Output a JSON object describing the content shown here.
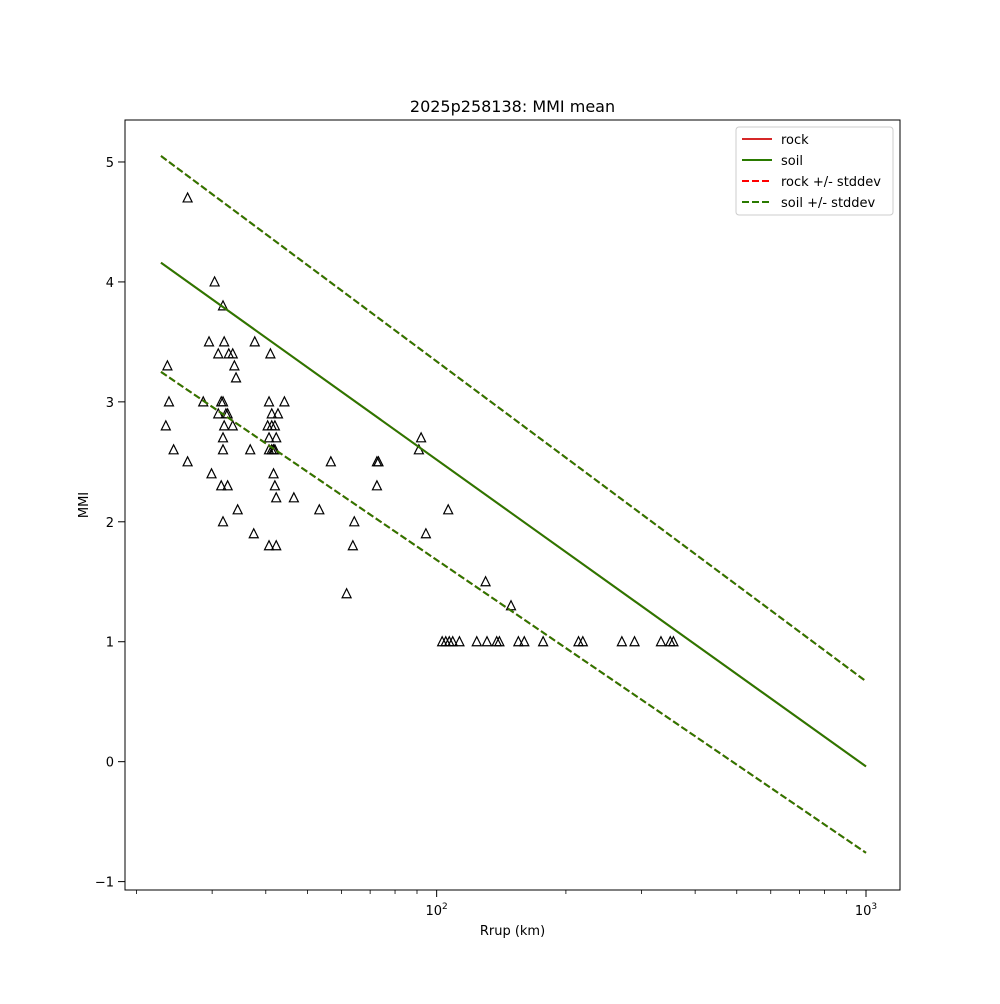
{
  "chart_data": {
    "type": "scatter",
    "title": "2025p258138: MMI mean",
    "xlabel": "Rrup (km)",
    "ylabel": "MMI",
    "xscale": "log",
    "xlim": [
      18.8,
      1200
    ],
    "ylim": [
      -1.07,
      5.35
    ],
    "x_ticks": [
      {
        "value": 100,
        "base": "10",
        "exp": "2"
      },
      {
        "value": 1000,
        "base": "10",
        "exp": "3"
      }
    ],
    "y_ticks": [
      {
        "value": -1,
        "label": "−1"
      },
      {
        "value": 0,
        "label": "0"
      },
      {
        "value": 1,
        "label": "1"
      },
      {
        "value": 2,
        "label": "2"
      },
      {
        "value": 3,
        "label": "3"
      },
      {
        "value": 4,
        "label": "4"
      },
      {
        "value": 5,
        "label": "5"
      }
    ],
    "grid": false,
    "legend_position": "top-right",
    "series": [
      {
        "name": "rock",
        "kind": "line",
        "style": "solid",
        "color": "#d62728",
        "x": [
          22.8,
          1000
        ],
        "y": [
          4.16,
          -0.04
        ]
      },
      {
        "name": "soil",
        "kind": "line",
        "style": "solid",
        "color": "#2a7a00",
        "x": [
          22.8,
          1000
        ],
        "y": [
          4.16,
          -0.04
        ]
      },
      {
        "name": "rock +/- stddev",
        "kind": "band",
        "style": "dashed",
        "color": "#ff0000",
        "x": [
          22.8,
          1000
        ],
        "upper": [
          5.05,
          0.67
        ],
        "lower": [
          3.25,
          -0.76
        ]
      },
      {
        "name": "soil +/- stddev",
        "kind": "band",
        "style": "dashed",
        "color": "#2a7a00",
        "x": [
          22.8,
          1000
        ],
        "upper": [
          5.05,
          0.67
        ],
        "lower": [
          3.25,
          -0.76
        ]
      }
    ],
    "observations": {
      "marker": "triangle",
      "color": "#000000",
      "points": [
        [
          26.3,
          4.7
        ],
        [
          30.4,
          4.0
        ],
        [
          31.8,
          3.8
        ],
        [
          23.6,
          3.3
        ],
        [
          23.4,
          2.8
        ],
        [
          23.8,
          3.0
        ],
        [
          24.4,
          2.6
        ],
        [
          26.3,
          2.5
        ],
        [
          28.6,
          3.0
        ],
        [
          29.9,
          2.4
        ],
        [
          29.5,
          3.5
        ],
        [
          31.0,
          3.4
        ],
        [
          32.0,
          3.5
        ],
        [
          32.8,
          3.4
        ],
        [
          33.5,
          3.4
        ],
        [
          33.8,
          3.3
        ],
        [
          34.1,
          3.2
        ],
        [
          37.7,
          3.5
        ],
        [
          31.0,
          2.9
        ],
        [
          31.5,
          3.0
        ],
        [
          31.8,
          3.0
        ],
        [
          32.3,
          2.9
        ],
        [
          32.6,
          2.9
        ],
        [
          32.0,
          2.8
        ],
        [
          33.5,
          2.8
        ],
        [
          31.8,
          2.7
        ],
        [
          31.8,
          2.6
        ],
        [
          36.8,
          2.6
        ],
        [
          31.5,
          2.3
        ],
        [
          32.6,
          2.3
        ],
        [
          34.4,
          2.1
        ],
        [
          31.8,
          2.0
        ],
        [
          37.5,
          1.9
        ],
        [
          41.0,
          3.4
        ],
        [
          44.2,
          3.0
        ],
        [
          40.7,
          3.0
        ],
        [
          41.3,
          2.9
        ],
        [
          42.7,
          2.9
        ],
        [
          40.4,
          2.8
        ],
        [
          41.3,
          2.8
        ],
        [
          42.0,
          2.8
        ],
        [
          40.7,
          2.7
        ],
        [
          42.3,
          2.7
        ],
        [
          40.7,
          2.6
        ],
        [
          41.3,
          2.6
        ],
        [
          41.7,
          2.6
        ],
        [
          42.0,
          2.6
        ],
        [
          41.7,
          2.4
        ],
        [
          42.0,
          2.3
        ],
        [
          42.3,
          2.2
        ],
        [
          46.5,
          2.2
        ],
        [
          40.7,
          1.8
        ],
        [
          42.3,
          1.8
        ],
        [
          56.7,
          2.5
        ],
        [
          53.3,
          2.1
        ],
        [
          61.7,
          1.4
        ],
        [
          64.3,
          2.0
        ],
        [
          63.8,
          1.8
        ],
        [
          72.6,
          2.5
        ],
        [
          73.2,
          2.5
        ],
        [
          72.6,
          2.3
        ],
        [
          92.0,
          2.7
        ],
        [
          90.9,
          2.6
        ],
        [
          94.4,
          1.9
        ],
        [
          106.4,
          2.1
        ],
        [
          130.0,
          1.5
        ],
        [
          149.0,
          1.3
        ],
        [
          103.0,
          1.0
        ],
        [
          105.0,
          1.0
        ],
        [
          107.0,
          1.0
        ],
        [
          109.0,
          1.0
        ],
        [
          113.0,
          1.0
        ],
        [
          124.0,
          1.0
        ],
        [
          131.0,
          1.0
        ],
        [
          138.0,
          1.0
        ],
        [
          140.0,
          1.0
        ],
        [
          155.0,
          1.0
        ],
        [
          160.0,
          1.0
        ],
        [
          177.0,
          1.0
        ],
        [
          214.0,
          1.0
        ],
        [
          219.0,
          1.0
        ],
        [
          270.0,
          1.0
        ],
        [
          289.0,
          1.0
        ],
        [
          333.0,
          1.0
        ],
        [
          350.0,
          1.0
        ],
        [
          356.0,
          1.0
        ]
      ]
    }
  }
}
